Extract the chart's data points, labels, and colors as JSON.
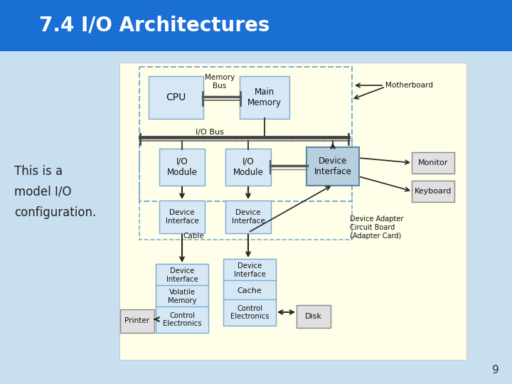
{
  "title": "7.4 I/O Architectures",
  "title_color": "#FFFFFF",
  "title_bg": "#1a6fd4",
  "slide_bg": "#c8dff0",
  "diagram_bg": "#fffee8",
  "body_text": "This is a\nmodel I/O\nconfiguration.",
  "page_number": "9",
  "box_fill": "#d6e8f5",
  "box_edge": "#7aaace",
  "dashed_box_edge": "#7ab0d8",
  "dev_iface_fill": "#b8cfe0",
  "dev_iface_edge": "#5a85a8",
  "gray_fill": "#e0e0e0",
  "gray_edge": "#888888"
}
